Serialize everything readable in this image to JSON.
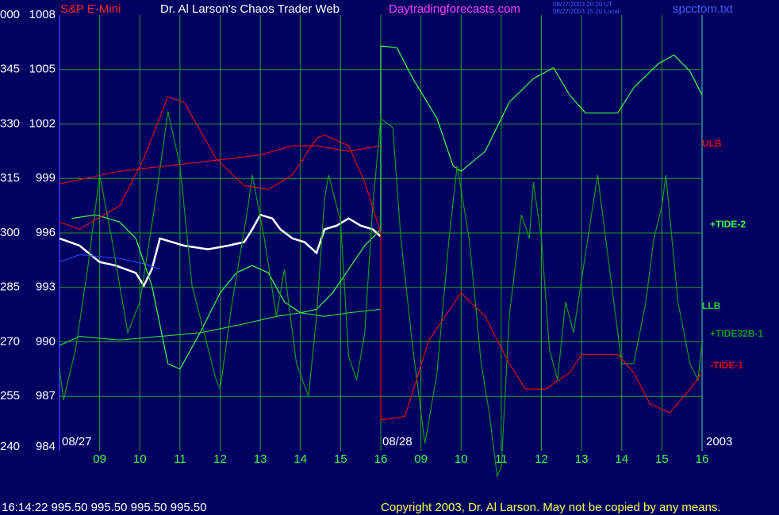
{
  "chart_data": {
    "type": "line",
    "title": "Dr. Al Larson's Chaos Trader Web",
    "instrument": "S&P E-Mini",
    "site": "Daytradingforecasts.com",
    "timestamps": [
      "08/27/2003 20:20 UT",
      "08/27/2003 15:20 Local"
    ],
    "file": "spcctom.txt",
    "status": "16:14:22 995.50 995.50 995.50 995.50",
    "copyright": "Copyright 2003, Dr. Al Larson. May not be copied by any means.",
    "date_labels": [
      "08/27",
      "08/28",
      "2003"
    ],
    "grid": true,
    "legend": "right",
    "xlim": [
      0,
      16
    ],
    "xticks": [
      {
        "value": 1,
        "label": "09"
      },
      {
        "value": 2,
        "label": "10"
      },
      {
        "value": 3,
        "label": "11"
      },
      {
        "value": 4,
        "label": "12"
      },
      {
        "value": 5,
        "label": "13"
      },
      {
        "value": 6,
        "label": "14"
      },
      {
        "value": 7,
        "label": "15"
      },
      {
        "value": 8,
        "label": "16"
      },
      {
        "value": 9,
        "label": "09"
      },
      {
        "value": 10,
        "label": "10"
      },
      {
        "value": 11,
        "label": "11"
      },
      {
        "value": 12,
        "label": "12"
      },
      {
        "value": 13,
        "label": "13"
      },
      {
        "value": 14,
        "label": "14"
      },
      {
        "value": 15,
        "label": "15"
      },
      {
        "value": 16,
        "label": "16"
      }
    ],
    "ylim": [
      984,
      1008
    ],
    "yticks": [
      984,
      987,
      990,
      993,
      996,
      999,
      1002,
      1005,
      1008
    ],
    "y2lim": [
      240,
      360
    ],
    "y2ticks": [
      240,
      255,
      270,
      285,
      300,
      315,
      330,
      345,
      {
        "value": 360,
        "label": "000"
      }
    ],
    "series": [
      {
        "color": "#ffffff",
        "x": [
          0,
          0.5,
          1.0,
          1.4,
          1.9,
          2.1,
          2.3,
          2.5,
          3.1,
          3.7,
          4.2,
          4.6,
          4.8,
          5.0,
          5.3,
          5.5,
          5.8,
          6.1,
          6.4,
          6.6,
          6.9,
          7.2,
          7.5,
          7.8,
          8.0
        ],
        "values": [
          995.7,
          995.3,
          994.4,
          994.2,
          993.8,
          993.1,
          994.0,
          995.7,
          995.3,
          995.1,
          995.3,
          995.5,
          996.2,
          997.0,
          996.8,
          996.2,
          995.7,
          995.5,
          994.9,
          996.2,
          996.4,
          996.8,
          996.4,
          996.2,
          995.8
        ]
      },
      {
        "color": "#2040ff",
        "x": [
          0,
          0.5,
          1.5,
          2.1,
          2.5
        ],
        "values": [
          994.4,
          994.8,
          994.6,
          994.3,
          994.0
        ]
      },
      {
        "name": "ULB",
        "color": "#e00000",
        "x": [
          0,
          1.5,
          3.5,
          5.0,
          5.8,
          6.4,
          7.2,
          8.0
        ],
        "values": [
          998.7,
          999.4,
          999.9,
          1000.3,
          1000.8,
          1000.8,
          1000.5,
          1000.8
        ]
      },
      {
        "name": "+TIDE-2",
        "color": "#40ff40",
        "x": [
          0.3,
          0.9,
          1.5,
          1.9,
          2.3,
          2.7,
          3.0,
          3.5,
          4.0,
          4.4,
          4.8,
          5.2,
          5.6,
          6.0,
          6.4,
          6.8,
          7.2,
          7.6,
          8.0,
          8.0,
          8.4,
          8.8,
          9.4,
          9.8,
          10.0,
          10.6,
          11.2,
          11.8,
          12.3,
          12.7,
          13.1,
          13.9,
          14.3,
          14.9,
          15.3,
          15.7,
          16.0
        ],
        "values": [
          996.8,
          997.0,
          996.6,
          995.7,
          993.1,
          988.8,
          988.5,
          990.5,
          992.7,
          993.8,
          994.2,
          993.8,
          992.2,
          991.6,
          991.8,
          992.7,
          994.0,
          995.3,
          996.2,
          1006.3,
          1006.2,
          1004.5,
          1002.3,
          999.7,
          999.4,
          1000.5,
          1003.2,
          1004.5,
          1005.1,
          1003.6,
          1002.6,
          1002.6,
          1004.0,
          1005.3,
          1005.8,
          1004.9,
          1003.6
        ]
      },
      {
        "name": "LLB",
        "color": "#30d030",
        "x": [
          0,
          0.5,
          1.5,
          3.5,
          4.4,
          5.4,
          6.0,
          6.6,
          7.2,
          8.0
        ],
        "values": [
          989.8,
          990.3,
          990.1,
          990.5,
          990.9,
          991.4,
          991.6,
          991.4,
          991.6,
          991.8
        ]
      },
      {
        "name": "+TIDE32B-1",
        "color": "#109a10",
        "x": [
          0,
          0.1,
          0.4,
          0.7,
          1.0,
          1.3,
          1.7,
          2.0,
          2.4,
          2.7,
          3.0,
          3.3,
          3.6,
          3.9,
          4.0,
          4.3,
          4.7,
          4.8,
          5.1,
          5.4,
          5.6,
          5.9,
          6.2,
          6.4,
          6.6,
          6.7,
          7.0,
          7.2,
          7.4,
          7.6,
          7.8,
          8.0,
          8.3,
          8.5,
          8.8,
          9.1,
          9.4,
          9.7,
          9.9,
          10.2,
          10.5,
          10.7,
          10.9,
          11.0,
          11.2,
          11.5,
          11.7,
          11.8,
          12.0,
          12.2,
          12.4,
          12.6,
          12.8,
          13.1,
          13.4,
          13.6,
          14.0,
          14.3,
          14.6,
          14.8,
          15.0,
          15.1,
          15.4,
          15.7,
          15.9,
          16.0
        ],
        "values": [
          988.5,
          986.8,
          989.6,
          994.0,
          999.2,
          995.7,
          990.5,
          992.2,
          997.9,
          1002.7,
          999.7,
          993.1,
          990.5,
          987.9,
          987.4,
          992.2,
          997.5,
          999.2,
          995.7,
          991.4,
          994.0,
          988.8,
          987.0,
          991.4,
          997.9,
          999.2,
          996.6,
          989.2,
          987.9,
          990.5,
          997.5,
          1002.3,
          1001.8,
          995.7,
          989.6,
          984.4,
          988.3,
          995.7,
          999.7,
          995.7,
          988.8,
          986.1,
          982.6,
          983.1,
          991.4,
          997.0,
          995.7,
          998.8,
          995.7,
          989.6,
          987.9,
          992.2,
          990.5,
          994.9,
          999.2,
          995.7,
          988.8,
          988.8,
          992.2,
          995.7,
          997.5,
          999.2,
          992.2,
          988.8,
          987.9,
          990.1
        ]
      },
      {
        "name": "-TIDE-1",
        "color": "#e00000",
        "x": [
          0,
          0.5,
          1.5,
          2.1,
          2.7,
          3.1,
          3.9,
          4.6,
          5.2,
          5.8,
          6.4,
          6.6,
          7.2,
          7.6,
          8.0,
          8.0,
          8.6,
          9.2,
          10.0,
          10.6,
          11.2,
          11.6,
          12.1,
          12.7,
          13.0,
          13.9,
          14.3,
          14.7,
          15.2,
          15.7,
          16.0
        ],
        "values": [
          996.6,
          996.2,
          997.5,
          1000.1,
          1003.5,
          1003.2,
          1000.1,
          998.6,
          998.4,
          999.2,
          1001.2,
          1001.4,
          1000.8,
          998.8,
          996.0,
          985.7,
          985.9,
          990.1,
          992.7,
          991.4,
          988.8,
          987.4,
          987.4,
          988.3,
          989.3,
          989.3,
          988.3,
          986.6,
          986.1,
          987.4,
          988.3
        ]
      }
    ]
  }
}
